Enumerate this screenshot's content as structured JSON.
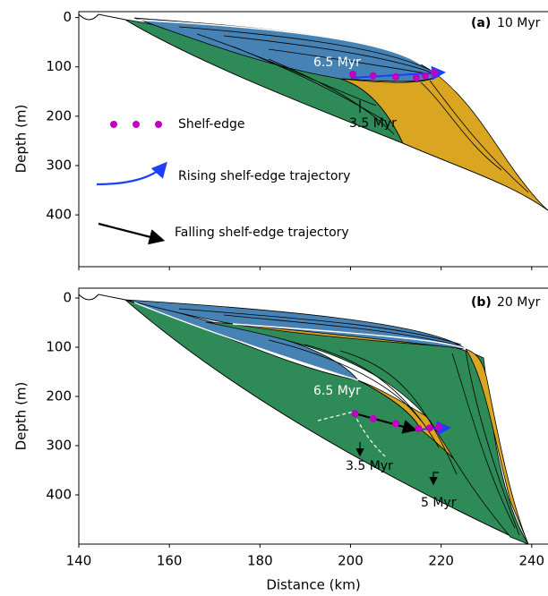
{
  "chart_data": [
    {
      "type": "section",
      "panel_label": "(a)",
      "title": "10 Myr",
      "ylabel": "Depth (m)",
      "xlim": [
        140,
        243.6
      ],
      "xticks": [
        140,
        160,
        180,
        200,
        220,
        240
      ],
      "ylim": [
        -12,
        505
      ],
      "yticks": [
        0,
        100,
        200,
        300,
        400
      ],
      "y_inverted": true,
      "series": [
        {
          "name": "Shelf-edge",
          "color": "#c000c0",
          "x": [
            200.5,
            205,
            210,
            214.5,
            216.5,
            218.5
          ],
          "values": [
            115,
            118,
            120,
            122,
            118,
            112
          ]
        }
      ],
      "legend_items": [
        "Rising shelf-edge trajectory",
        "Falling shelf-edge trajectory"
      ],
      "annotations": [
        "6.5 Myr",
        "3.5 Myr"
      ]
    },
    {
      "type": "section",
      "panel_label": "(b)",
      "title": "20 Myr",
      "ylabel": "Depth (m)",
      "xlabel": "Distance (km)",
      "xlim": [
        140,
        243.6
      ],
      "xticks": [
        140,
        160,
        180,
        200,
        220,
        240
      ],
      "ylim": [
        -20,
        500
      ],
      "yticks": [
        0,
        100,
        200,
        300,
        400
      ],
      "y_inverted": true,
      "series": [
        {
          "name": "Shelf-edge",
          "color": "#c000c0",
          "x": [
            201,
            205,
            210,
            215,
            217.5,
            219.5
          ],
          "values": [
            235,
            245,
            255,
            265,
            264,
            262
          ]
        }
      ],
      "annotations": [
        "6.5 Myr",
        "3.5 Myr",
        "5 Myr"
      ]
    }
  ]
}
